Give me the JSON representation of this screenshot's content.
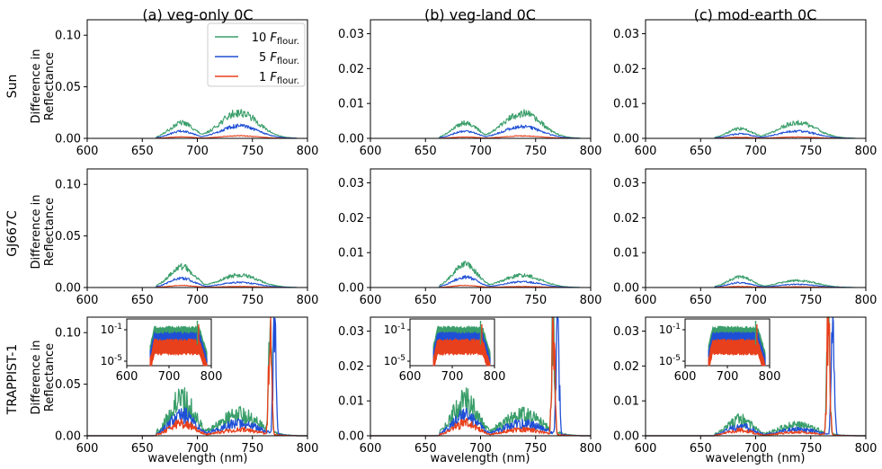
{
  "figure": {
    "columns": [
      "(a) veg-only 0C",
      "(b) veg-land 0C",
      "(c) mod-earth 0C"
    ],
    "rows": [
      "Sun",
      "GJ667C",
      "TRAPPIST-1"
    ],
    "ylabel": [
      "Difference in",
      "Reflectance"
    ],
    "xlabel": "wavelength (nm)",
    "legend": [
      {
        "prefix": "10 ",
        "sym": "F",
        "sub": "flour.",
        "color": "#3a9e6a"
      },
      {
        "prefix": "5 ",
        "sym": "F",
        "sub": "flour.",
        "color": "#1f4fd6"
      },
      {
        "prefix": "1 ",
        "sym": "F",
        "sub": "flour.",
        "color": "#e8401c"
      }
    ]
  },
  "chart_data": [
    {
      "type": "line",
      "panel": "Sun (a) veg-only 0C",
      "xlim": [
        600,
        800
      ],
      "ylim": [
        0,
        0.115
      ],
      "xticks": [
        "600",
        "650",
        "700",
        "750",
        "800"
      ],
      "yticks": [
        "0.00",
        "0.05",
        "0.10"
      ],
      "series": [
        {
          "name": "10 F_flour.",
          "peaks": [
            {
              "x": 686,
              "y": 0.015
            },
            {
              "x": 738,
              "y": 0.025
            }
          ]
        },
        {
          "name": "5 F_flour.",
          "peaks": [
            {
              "x": 686,
              "y": 0.007
            },
            {
              "x": 738,
              "y": 0.012
            }
          ]
        },
        {
          "name": "1 F_flour.",
          "peaks": [
            {
              "x": 686,
              "y": 0.0015
            },
            {
              "x": 738,
              "y": 0.0025
            }
          ]
        }
      ]
    },
    {
      "type": "line",
      "panel": "Sun (b) veg-land 0C",
      "xlim": [
        600,
        800
      ],
      "ylim": [
        0,
        0.034
      ],
      "xticks": [
        "600",
        "650",
        "700",
        "750",
        "800"
      ],
      "yticks": [
        "0.00",
        "0.01",
        "0.02",
        "0.03"
      ],
      "series": [
        {
          "name": "10 F_flour.",
          "peaks": [
            {
              "x": 686,
              "y": 0.0045
            },
            {
              "x": 738,
              "y": 0.0072
            }
          ]
        },
        {
          "name": "5 F_flour.",
          "peaks": [
            {
              "x": 686,
              "y": 0.0021
            },
            {
              "x": 738,
              "y": 0.0034
            }
          ]
        },
        {
          "name": "1 F_flour.",
          "peaks": [
            {
              "x": 686,
              "y": 0.0004
            },
            {
              "x": 738,
              "y": 0.0007
            }
          ]
        }
      ]
    },
    {
      "type": "line",
      "panel": "Sun (c) mod-earth 0C",
      "xlim": [
        600,
        800
      ],
      "ylim": [
        0,
        0.034
      ],
      "xticks": [
        "600",
        "650",
        "700",
        "750",
        "800"
      ],
      "yticks": [
        "0.00",
        "0.01",
        "0.02",
        "0.03"
      ],
      "series": [
        {
          "name": "10 F_flour.",
          "peaks": [
            {
              "x": 686,
              "y": 0.0028
            },
            {
              "x": 738,
              "y": 0.0045
            }
          ]
        },
        {
          "name": "5 F_flour.",
          "peaks": [
            {
              "x": 686,
              "y": 0.0013
            },
            {
              "x": 738,
              "y": 0.0021
            }
          ]
        },
        {
          "name": "1 F_flour.",
          "peaks": [
            {
              "x": 686,
              "y": 0.0003
            },
            {
              "x": 738,
              "y": 0.0004
            }
          ]
        }
      ]
    },
    {
      "type": "line",
      "panel": "GJ667C (a) veg-only 0C",
      "xlim": [
        600,
        800
      ],
      "ylim": [
        0,
        0.115
      ],
      "xticks": [
        "600",
        "650",
        "700",
        "750",
        "800"
      ],
      "yticks": [
        "0.00",
        "0.05",
        "0.10"
      ],
      "series": [
        {
          "name": "10 F_flour.",
          "peaks": [
            {
              "x": 686,
              "y": 0.02
            },
            {
              "x": 738,
              "y": 0.012
            }
          ]
        },
        {
          "name": "5 F_flour.",
          "peaks": [
            {
              "x": 686,
              "y": 0.009
            },
            {
              "x": 738,
              "y": 0.005
            }
          ]
        },
        {
          "name": "1 F_flour.",
          "peaks": [
            {
              "x": 686,
              "y": 0.002
            },
            {
              "x": 738,
              "y": 0.001
            }
          ]
        }
      ]
    },
    {
      "type": "line",
      "panel": "GJ667C (b) veg-land 0C",
      "xlim": [
        600,
        800
      ],
      "ylim": [
        0,
        0.034
      ],
      "xticks": [
        "600",
        "650",
        "700",
        "750",
        "800"
      ],
      "yticks": [
        "0.00",
        "0.01",
        "0.02",
        "0.03"
      ],
      "series": [
        {
          "name": "10 F_flour.",
          "peaks": [
            {
              "x": 686,
              "y": 0.0065
            },
            {
              "x": 738,
              "y": 0.0035
            }
          ]
        },
        {
          "name": "5 F_flour.",
          "peaks": [
            {
              "x": 686,
              "y": 0.003
            },
            {
              "x": 738,
              "y": 0.0016
            }
          ]
        },
        {
          "name": "1 F_flour.",
          "peaks": [
            {
              "x": 686,
              "y": 0.0006
            },
            {
              "x": 738,
              "y": 0.0003
            }
          ]
        }
      ]
    },
    {
      "type": "line",
      "panel": "GJ667C (c) mod-earth 0C",
      "xlim": [
        600,
        800
      ],
      "ylim": [
        0,
        0.034
      ],
      "xticks": [
        "600",
        "650",
        "700",
        "750",
        "800"
      ],
      "yticks": [
        "0.00",
        "0.01",
        "0.02",
        "0.03"
      ],
      "series": [
        {
          "name": "10 F_flour.",
          "peaks": [
            {
              "x": 686,
              "y": 0.003
            },
            {
              "x": 738,
              "y": 0.002
            }
          ]
        },
        {
          "name": "5 F_flour.",
          "peaks": [
            {
              "x": 686,
              "y": 0.0014
            },
            {
              "x": 738,
              "y": 0.0009
            }
          ]
        },
        {
          "name": "1 F_flour.",
          "peaks": [
            {
              "x": 686,
              "y": 0.0003
            },
            {
              "x": 738,
              "y": 0.0002
            }
          ]
        }
      ]
    },
    {
      "type": "line",
      "panel": "TRAPPIST-1 (a) veg-only 0C",
      "xlim": [
        600,
        800
      ],
      "ylim": [
        0,
        0.115
      ],
      "xticks": [
        "600",
        "650",
        "700",
        "750",
        "800"
      ],
      "yticks": [
        "0.00",
        "0.05",
        "0.10"
      ],
      "series": [
        {
          "name": "10 F_flour.",
          "peaks": [
            {
              "x": 686,
              "y": 0.035
            },
            {
              "x": 738,
              "y": 0.02
            },
            {
              "x": 766,
              "y": 0.115
            }
          ]
        },
        {
          "name": "5 F_flour.",
          "peaks": [
            {
              "x": 686,
              "y": 0.02
            },
            {
              "x": 738,
              "y": 0.012
            },
            {
              "x": 770,
              "y": 0.115
            }
          ]
        },
        {
          "name": "1 F_flour.",
          "peaks": [
            {
              "x": 686,
              "y": 0.012
            },
            {
              "x": 738,
              "y": 0.006
            },
            {
              "x": 766,
              "y": 0.115
            }
          ]
        }
      ],
      "inset": {
        "xlim": [
          600,
          800
        ],
        "scale": "log",
        "xticks": [
          "600",
          "700",
          "800"
        ],
        "yticks": [
          "10^-1",
          "10^-5"
        ]
      }
    },
    {
      "type": "line",
      "panel": "TRAPPIST-1 (b) veg-land 0C",
      "xlim": [
        600,
        800
      ],
      "ylim": [
        0,
        0.034
      ],
      "xticks": [
        "600",
        "650",
        "700",
        "750",
        "800"
      ],
      "yticks": [
        "0.00",
        "0.01",
        "0.02",
        "0.03"
      ],
      "series": [
        {
          "name": "10 F_flour.",
          "peaks": [
            {
              "x": 686,
              "y": 0.01
            },
            {
              "x": 738,
              "y": 0.006
            },
            {
              "x": 766,
              "y": 0.034
            }
          ]
        },
        {
          "name": "5 F_flour.",
          "peaks": [
            {
              "x": 686,
              "y": 0.006
            },
            {
              "x": 738,
              "y": 0.0035
            },
            {
              "x": 770,
              "y": 0.034
            }
          ]
        },
        {
          "name": "1 F_flour.",
          "peaks": [
            {
              "x": 686,
              "y": 0.0035
            },
            {
              "x": 738,
              "y": 0.0018
            },
            {
              "x": 766,
              "y": 0.034
            }
          ]
        }
      ],
      "inset": {
        "xlim": [
          600,
          800
        ],
        "scale": "log",
        "xticks": [
          "600",
          "700",
          "800"
        ],
        "yticks": [
          "10^-1",
          "10^-5"
        ]
      }
    },
    {
      "type": "line",
      "panel": "TRAPPIST-1 (c) mod-earth 0C",
      "xlim": [
        600,
        800
      ],
      "ylim": [
        0,
        0.034
      ],
      "xticks": [
        "600",
        "650",
        "700",
        "750",
        "800"
      ],
      "yticks": [
        "0.00",
        "0.01",
        "0.02",
        "0.03"
      ],
      "series": [
        {
          "name": "10 F_flour.",
          "peaks": [
            {
              "x": 686,
              "y": 0.0045
            },
            {
              "x": 738,
              "y": 0.003
            },
            {
              "x": 766,
              "y": 0.034
            }
          ]
        },
        {
          "name": "5 F_flour.",
          "peaks": [
            {
              "x": 686,
              "y": 0.0028
            },
            {
              "x": 738,
              "y": 0.0018
            },
            {
              "x": 770,
              "y": 0.034
            }
          ]
        },
        {
          "name": "1 F_flour.",
          "peaks": [
            {
              "x": 686,
              "y": 0.0016
            },
            {
              "x": 738,
              "y": 0.001
            },
            {
              "x": 766,
              "y": 0.034
            }
          ]
        }
      ],
      "inset": {
        "xlim": [
          600,
          800
        ],
        "scale": "log",
        "xticks": [
          "600",
          "700",
          "800"
        ],
        "yticks": [
          "10^-1",
          "10^-5"
        ]
      }
    }
  ]
}
